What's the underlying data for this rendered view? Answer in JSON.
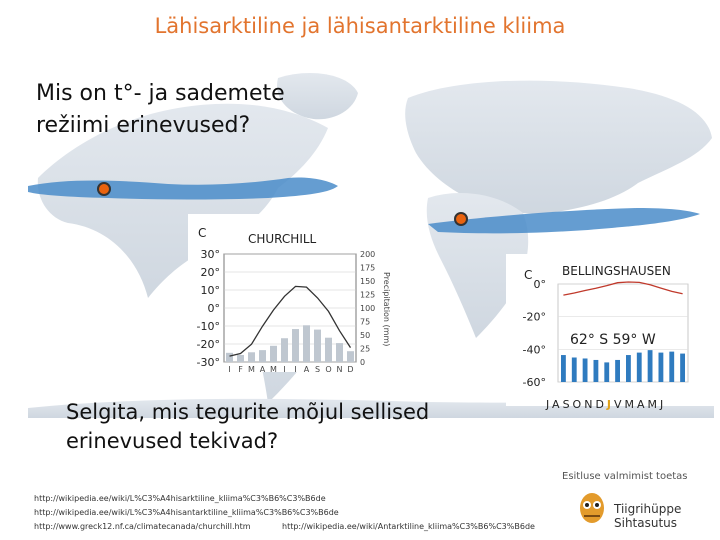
{
  "title": "Lähisarktiline ja lähisantarktiline kliima",
  "question": {
    "line1": "Mis on t°- ja sademete",
    "line2": "režiimi erinevused?"
  },
  "churchill": {
    "unit": "C",
    "name": "CHURCHILL",
    "temp_ticks": [
      "30°",
      "20°",
      "10°",
      "0°",
      "-10°",
      "-20°",
      "-30°"
    ],
    "precip_ticks": [
      "200",
      "175",
      "150",
      "125",
      "100",
      "75",
      "50",
      "25",
      "0"
    ],
    "precip_axis_label": "Precipitation (mm)",
    "months": [
      "J",
      "F",
      "M",
      "A",
      "M",
      "J",
      "J",
      "A",
      "S",
      "O",
      "N",
      "D"
    ],
    "temperature_c": [
      -26.7,
      -25.3,
      -20.1,
      -10.1,
      -1.1,
      6.5,
      12.0,
      11.6,
      5.6,
      -1.9,
      -12.6,
      -22.0
    ],
    "precipitation_mm": [
      17,
      13,
      18,
      22,
      30,
      44,
      61,
      68,
      60,
      45,
      35,
      20
    ]
  },
  "bellingshausen": {
    "unit": "C",
    "name": "BELLINGSHAUSEN",
    "temp_ticks": [
      "0°",
      "-20°",
      "-40°",
      "-60°"
    ],
    "coords": "62° S 59° W",
    "months_before": "JASOND",
    "months_highlight": "J",
    "months_after": "VMAMJ",
    "temperature_c": [
      -6.8,
      -5.5,
      -4.0,
      -2.6,
      -1.0,
      0.8,
      1.2,
      1.0,
      -0.5,
      -2.5,
      -4.5,
      -6.0
    ],
    "precipitation_mm": [
      55,
      50,
      48,
      45,
      40,
      45,
      55,
      60,
      65,
      60,
      62,
      58
    ]
  },
  "prompt": {
    "line1": "Selgita, mis tegurite mõjul sellised",
    "line2": "erinevused tekivad?"
  },
  "sources": {
    "s1": "http://wikipedia.ee/wiki/L%C3%A4hisarktiline_kliima%C3%B6%C3%B6de",
    "s2": "http://wikipedia.ee/wiki/L%C3%A4hisantarktiline_kliima%C3%B6%C3%B6de",
    "s3": "http://www.greck12.nf.ca/climatecanada/churchill.htm",
    "s4": "http://wikipedia.ee/wiki/Antarktiline_kliima%C3%B6%C3%B6de"
  },
  "sponsor": {
    "text": "Esitluse valmimist toetas",
    "org": "Tiigrihüppe Sihtasutus"
  },
  "colors": {
    "title": "#e2742e",
    "map_land": "#dde3ea",
    "map_sea": "#ffffff",
    "band": "#4a8cc9",
    "marker": "#e9630f",
    "bars": "#2f7bbf"
  }
}
